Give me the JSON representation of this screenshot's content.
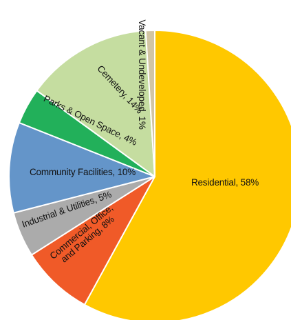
{
  "chart_data": {
    "type": "pie",
    "title": "",
    "start_angle_deg": 0,
    "direction": "clockwise",
    "slices": [
      {
        "name": "Residential",
        "value": 58,
        "label_lines": [
          "Residential, 58%"
        ],
        "color": "#FFC800",
        "label_rotation_deg": 0
      },
      {
        "name": "Commercial, Office, and Parking",
        "value": 8,
        "label_lines": [
          "Commercial, Office,",
          "and Parking, 8%"
        ],
        "color": "#F05A28",
        "label_rotation_deg": -40
      },
      {
        "name": "Industrial & Utilities",
        "value": 5,
        "label_lines": [
          "Industrial & Utilities, 5%"
        ],
        "color": "#ABABAB",
        "label_rotation_deg": -19
      },
      {
        "name": "Community Facilities",
        "value": 10,
        "label_lines": [
          "Community Facilities, 10%"
        ],
        "color": "#6495C9",
        "label_rotation_deg": 0
      },
      {
        "name": "Parks & Open Space",
        "value": 4,
        "label_lines": [
          "Parks & Open Space, 4%"
        ],
        "color": "#22B05A",
        "label_rotation_deg": 26
      },
      {
        "name": "Cemetery",
        "value": 14,
        "label_lines": [
          "Cemetery, 14%"
        ],
        "color": "#C5DDA0",
        "label_rotation_deg": 47
      },
      {
        "name": "Vacant & Undeveloped",
        "value": 1,
        "label_lines": [
          "Vacant & Undeveloped, 1%"
        ],
        "color": "#D2C5A3",
        "label_rotation_deg": 90
      }
    ]
  }
}
